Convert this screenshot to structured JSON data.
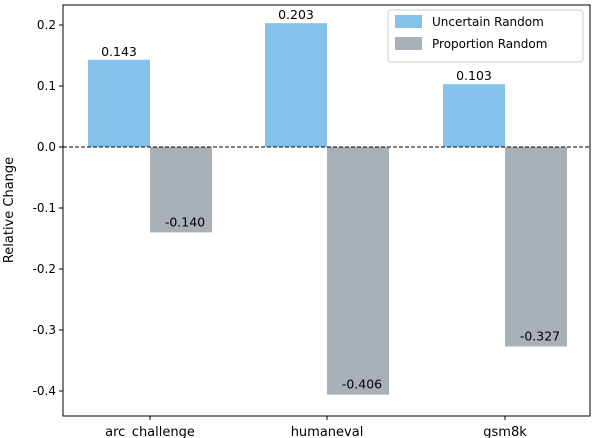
{
  "chart_data": {
    "type": "bar",
    "categories": [
      "arc_challenge",
      "humaneval",
      "gsm8k"
    ],
    "series": [
      {
        "name": "Uncertain Random",
        "values": [
          0.143,
          0.203,
          0.103
        ],
        "color": "#85c1e9"
      },
      {
        "name": "Proportion Random",
        "values": [
          -0.14,
          -0.406,
          -0.327
        ],
        "color": "#aab0b7"
      }
    ],
    "data_labels": [
      [
        "0.143",
        "0.203",
        "0.103"
      ],
      [
        "-0.140",
        "-0.406",
        "-0.327"
      ]
    ],
    "ylabel": "Relative Change",
    "xlabel": "",
    "ylim": [
      -0.42,
      0.22
    ],
    "yticks": [
      0.2,
      0.1,
      0.0,
      -0.1,
      -0.2,
      -0.3,
      -0.4
    ],
    "ytick_labels": [
      "0.2",
      "0.1",
      "0.0",
      "-0.1",
      "-0.2",
      "-0.3",
      "-0.4"
    ],
    "zero_line": "dashed",
    "grid": false,
    "legend_position": "top-right"
  }
}
